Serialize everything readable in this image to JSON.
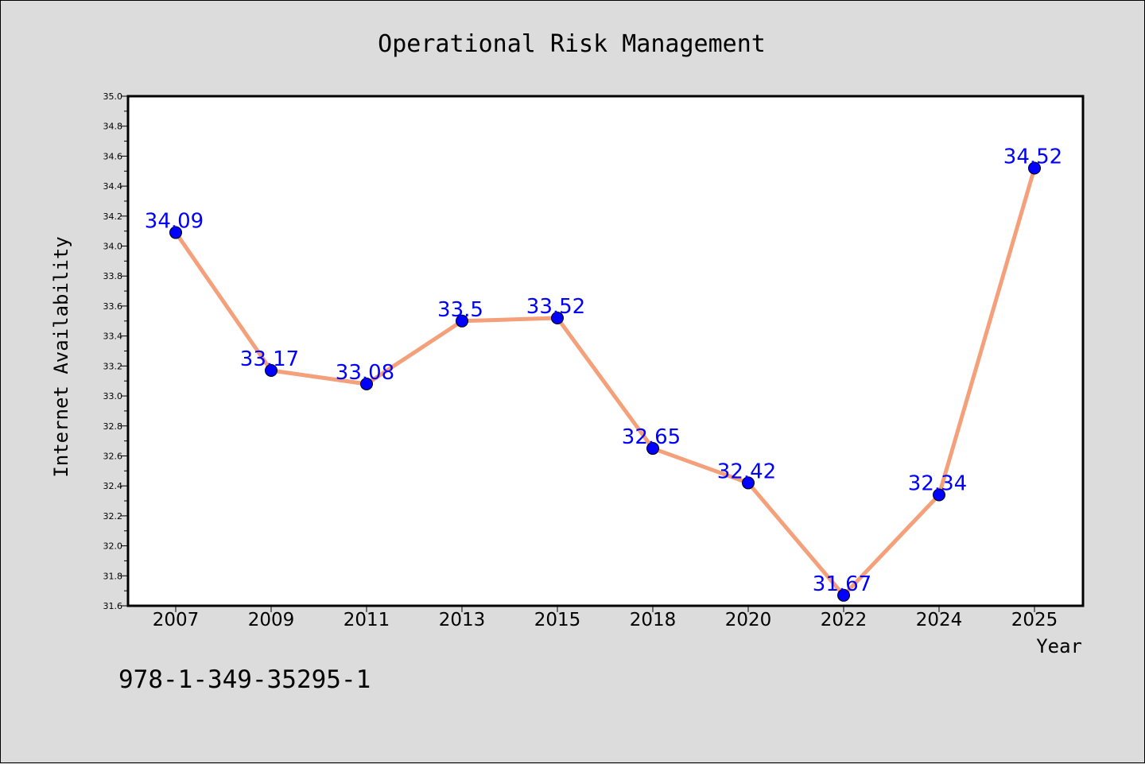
{
  "chart_data": {
    "type": "line",
    "title": "Operational Risk Management",
    "xlabel": "Year",
    "ylabel": "Internet Availability",
    "categories": [
      "2007",
      "2009",
      "2011",
      "2013",
      "2015",
      "2018",
      "2020",
      "2022",
      "2024",
      "2025"
    ],
    "values": [
      34.09,
      33.17,
      33.08,
      33.5,
      33.52,
      32.65,
      32.42,
      31.67,
      32.34,
      34.52
    ],
    "data_labels": [
      "34.09",
      "33.17",
      "33.08",
      "33.5",
      "33.52",
      "32.65",
      "32.42",
      "31.67",
      "32.34",
      "34.52"
    ],
    "ylim": [
      31.6,
      35.0
    ],
    "yticks": [
      "31.6",
      "31.8",
      "32.0",
      "32.2",
      "32.4",
      "32.6",
      "32.8",
      "33.0",
      "33.2",
      "33.4",
      "33.6",
      "33.8",
      "34.0",
      "34.2",
      "34.4",
      "34.6",
      "34.8",
      "35.0"
    ],
    "grid": false,
    "line_color": "#f4a07a",
    "marker_color": "#0000ff",
    "label_color": "#0000ff"
  },
  "footer": {
    "text": "978-1-349-35295-1"
  }
}
